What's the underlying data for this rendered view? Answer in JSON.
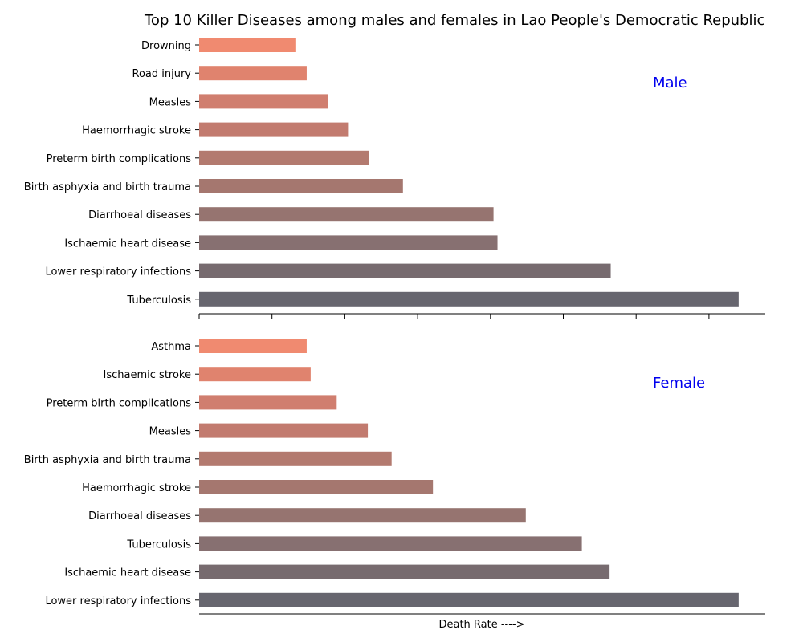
{
  "chart_data": {
    "type": "bar",
    "orientation": "horizontal",
    "title": "Top 10 Killer Diseases among males and females in Lao People's Democratic Republic",
    "xlabel": "Death Rate ---->",
    "xlim": [
      0,
      100
    ],
    "panels": [
      {
        "name": "Male",
        "categories": [
          "Drowning",
          "Road injury",
          "Measles",
          "Haemorrhagic stroke",
          "Preterm birth complications",
          "Birth asphyxia and birth trauma",
          "Diarrhoeal diseases",
          "Ischaemic heart disease",
          "Lower respiratory infections",
          "Tuberculosis"
        ],
        "values": [
          17,
          19,
          22.7,
          26.3,
          30,
          36,
          52,
          52.7,
          72.7,
          95.3
        ]
      },
      {
        "name": "Female",
        "categories": [
          "Asthma",
          "Ischaemic stroke",
          "Preterm birth complications",
          "Measles",
          "Birth asphyxia and birth trauma",
          "Haemorrhagic stroke",
          "Diarrhoeal diseases",
          "Tuberculosis",
          "Ischaemic heart disease",
          "Lower respiratory infections"
        ],
        "values": [
          19,
          19.7,
          24.3,
          29.8,
          34,
          41.3,
          57.7,
          67.6,
          72.5,
          95.3
        ]
      }
    ],
    "colors": [
      "#f08a70",
      "#e0836e",
      "#d07e6f",
      "#c27b6f",
      "#b37a6f",
      "#a5776f",
      "#967470",
      "#877071",
      "#776b6f",
      "#67666f"
    ],
    "annotation_color": "#0000ee",
    "grid": false,
    "legend": "none"
  }
}
